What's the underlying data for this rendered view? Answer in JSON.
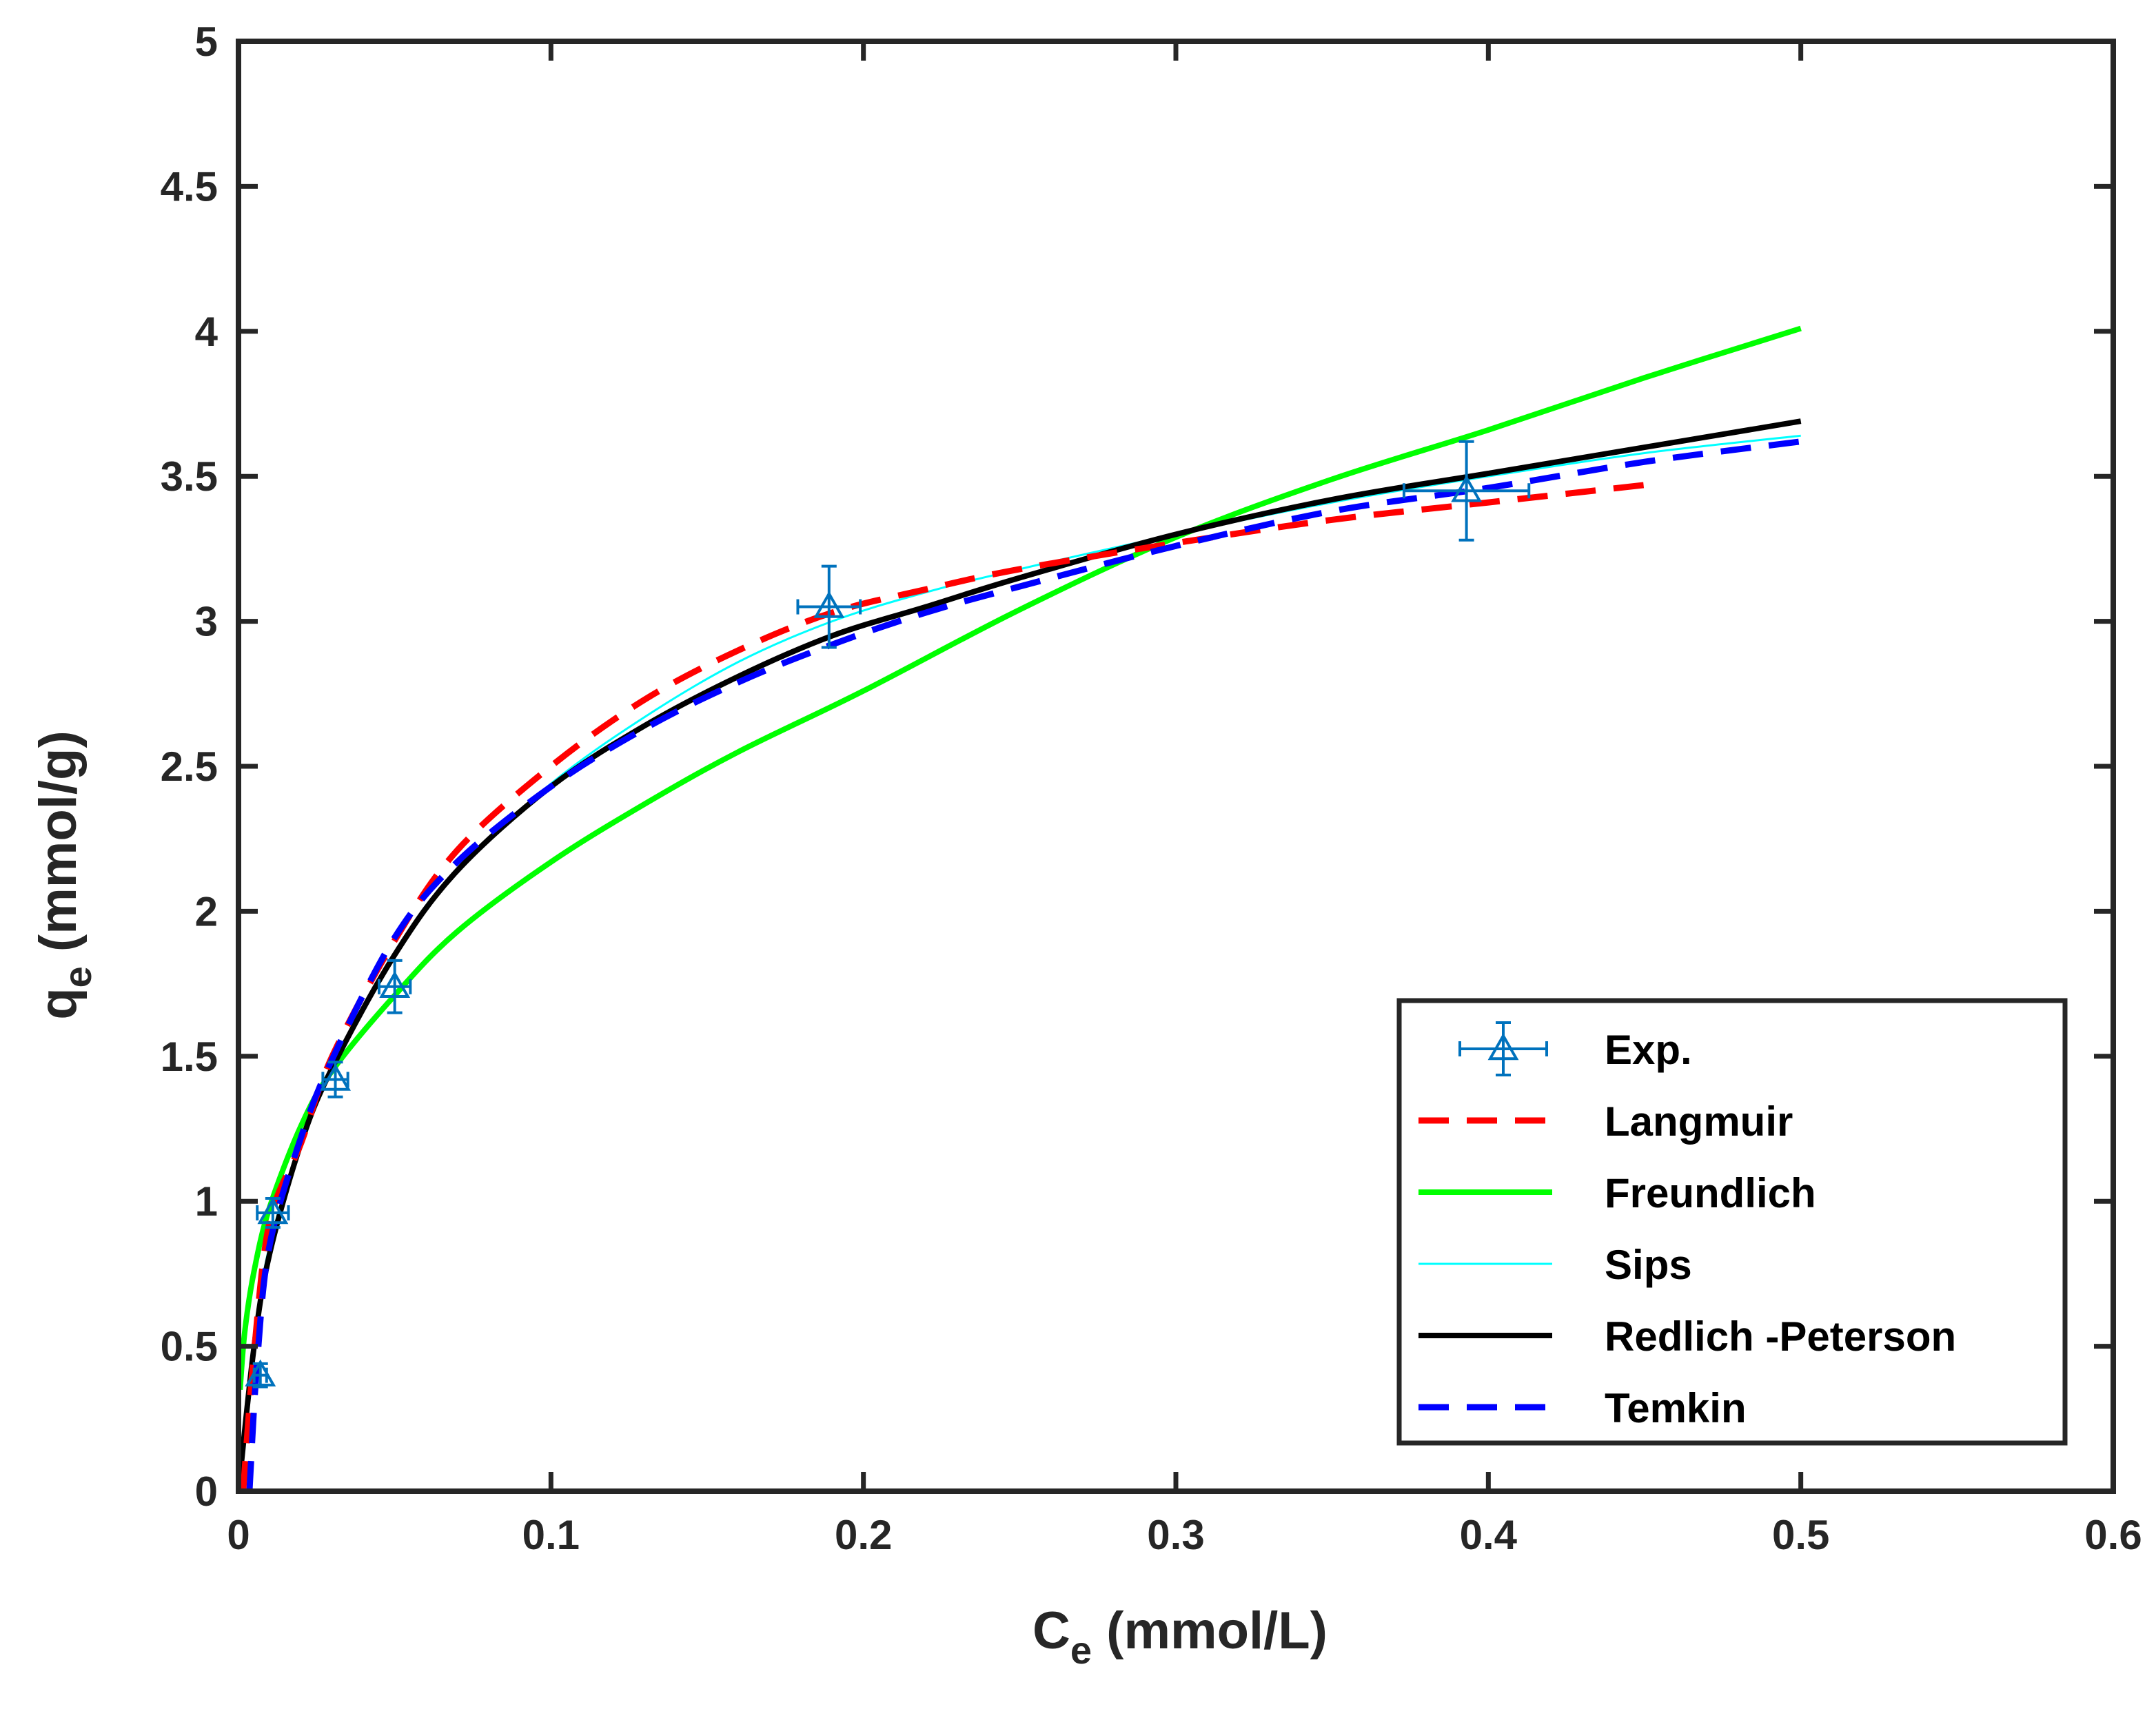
{
  "chart_data": {
    "type": "line",
    "title": "",
    "xlabel": {
      "main": "C",
      "sub": "e",
      "suffix": " (mmol/L)"
    },
    "ylabel": {
      "main": "q",
      "sub": "e",
      "suffix": " (mmol/g)"
    },
    "xlim": [
      0,
      0.6
    ],
    "ylim": [
      0,
      5
    ],
    "xticks": [
      0,
      0.1,
      0.2,
      0.3,
      0.4,
      0.5,
      0.6
    ],
    "xtick_labels": [
      "0",
      "0.1",
      "0.2",
      "0.3",
      "0.4",
      "0.5",
      "0.6"
    ],
    "yticks": [
      0,
      0.5,
      1,
      1.5,
      2,
      2.5,
      3,
      3.5,
      4,
      4.5,
      5
    ],
    "ytick_labels": [
      "0",
      "0.5",
      "1",
      "1.5",
      "2",
      "2.5",
      "3",
      "3.5",
      "4",
      "4.5",
      "5"
    ],
    "grid": false,
    "legend_position": "bottom-right",
    "experimental": {
      "name": "Exp.",
      "color": "#0072BD",
      "points": [
        {
          "x": 0.007,
          "y": 0.4,
          "yerr": 0.04,
          "xerr": 0.002
        },
        {
          "x": 0.011,
          "y": 0.96,
          "yerr": 0.05,
          "xerr": 0.005
        },
        {
          "x": 0.031,
          "y": 1.42,
          "yerr": 0.06,
          "xerr": 0.004
        },
        {
          "x": 0.05,
          "y": 1.74,
          "yerr": 0.09,
          "xerr": 0.005
        },
        {
          "x": 0.189,
          "y": 3.05,
          "yerr": 0.14,
          "xerr": 0.01
        },
        {
          "x": 0.393,
          "y": 3.45,
          "yerr": 0.17,
          "xerr": 0.02
        }
      ]
    },
    "series": [
      {
        "name": "Langmuir",
        "color": "#FF0000",
        "style": "dashed",
        "width": 9,
        "x": [
          0.0015,
          0.005,
          0.01,
          0.02,
          0.03,
          0.05,
          0.07,
          0.1,
          0.13,
          0.16,
          0.19,
          0.22,
          0.25,
          0.3,
          0.35,
          0.4,
          0.45
        ],
        "y": [
          0.0,
          0.48,
          0.93,
          1.2,
          1.5,
          1.9,
          2.21,
          2.5,
          2.73,
          2.9,
          3.03,
          3.11,
          3.18,
          3.27,
          3.35,
          3.41,
          3.47
        ]
      },
      {
        "name": "Freundlich",
        "color": "#00FF00",
        "style": "solid",
        "width": 8,
        "x": [
          0.0005,
          0.002,
          0.005,
          0.01,
          0.02,
          0.03,
          0.05,
          0.07,
          0.1,
          0.13,
          0.16,
          0.2,
          0.25,
          0.3,
          0.35,
          0.4,
          0.45,
          0.5
        ],
        "y": [
          0.35,
          0.55,
          0.76,
          0.98,
          1.26,
          1.45,
          1.71,
          1.93,
          2.17,
          2.37,
          2.55,
          2.76,
          3.04,
          3.29,
          3.49,
          3.66,
          3.84,
          4.01
        ]
      },
      {
        "name": "Sips",
        "color": "#00FFFF",
        "style": "solid",
        "width": 3,
        "x": [
          0.0,
          0.005,
          0.01,
          0.02,
          0.03,
          0.05,
          0.07,
          0.1,
          0.13,
          0.16,
          0.19,
          0.22,
          0.25,
          0.3,
          0.35,
          0.4,
          0.45,
          0.5
        ],
        "y": [
          0.0,
          0.52,
          0.85,
          1.2,
          1.45,
          1.85,
          2.14,
          2.44,
          2.67,
          2.86,
          3.0,
          3.1,
          3.18,
          3.3,
          3.41,
          3.5,
          3.58,
          3.64
        ]
      },
      {
        "name": "Redlich -Peterson",
        "color": "#000000",
        "style": "solid",
        "width": 8,
        "x": [
          0.0,
          0.005,
          0.01,
          0.02,
          0.03,
          0.05,
          0.07,
          0.1,
          0.13,
          0.16,
          0.19,
          0.22,
          0.25,
          0.3,
          0.35,
          0.4,
          0.45,
          0.5
        ],
        "y": [
          0.0,
          0.5,
          0.82,
          1.2,
          1.46,
          1.85,
          2.14,
          2.43,
          2.64,
          2.81,
          2.95,
          3.05,
          3.15,
          3.3,
          3.42,
          3.51,
          3.6,
          3.69
        ]
      },
      {
        "name": "Temkin",
        "color": "#0000FF",
        "style": "dashed",
        "width": 9,
        "x": [
          0.0035,
          0.006,
          0.01,
          0.02,
          0.03,
          0.05,
          0.07,
          0.1,
          0.13,
          0.16,
          0.19,
          0.22,
          0.25,
          0.3,
          0.35,
          0.4,
          0.45,
          0.5
        ],
        "y": [
          0.0,
          0.45,
          0.85,
          1.22,
          1.49,
          1.91,
          2.17,
          2.43,
          2.63,
          2.79,
          2.92,
          3.03,
          3.12,
          3.26,
          3.38,
          3.46,
          3.55,
          3.62
        ]
      }
    ]
  }
}
